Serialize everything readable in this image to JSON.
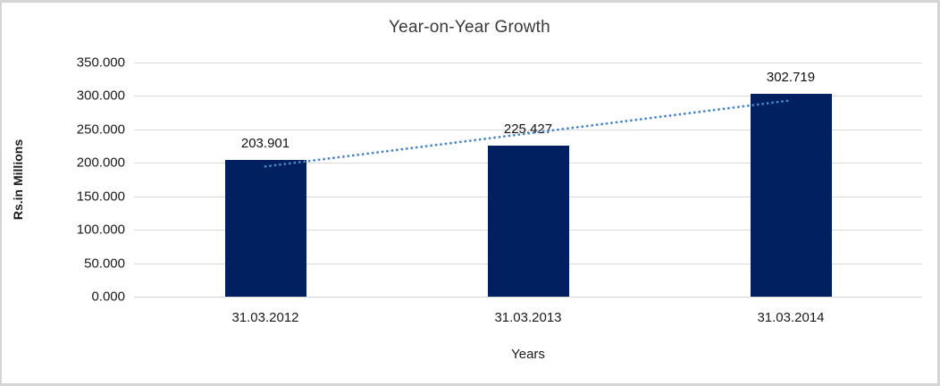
{
  "chart_data": {
    "type": "bar",
    "title": "Year-on-Year Growth",
    "xlabel": "Years",
    "ylabel": "Rs.in Millions",
    "categories": [
      "31.03.2012",
      "31.03.2013",
      "31.03.2014"
    ],
    "values": [
      203.901,
      225.427,
      302.719
    ],
    "data_labels": [
      "203.901",
      "225.427",
      "302.719"
    ],
    "ylim": [
      0,
      350
    ],
    "ytick_step": 50,
    "ytick_labels": [
      "0.000",
      "50.000",
      "100.000",
      "150.000",
      "200.000",
      "250.000",
      "300.000",
      "350.000"
    ],
    "grid": "horizontal",
    "legend": "none",
    "bar_color": "#002060",
    "gridline_color": "#d9d9d9",
    "trendline": {
      "type": "linear",
      "style": "dotted",
      "color": "#4a86c8"
    }
  }
}
